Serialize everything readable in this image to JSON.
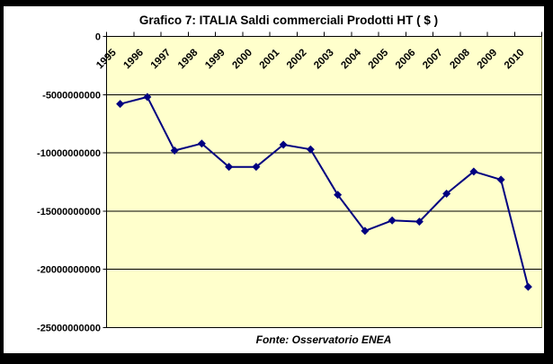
{
  "title": "Grafico 7: ITALIA Saldi commerciali Prodotti HT ( $ )",
  "chart_data": {
    "type": "line",
    "title": "Grafico 7: ITALIA Saldi commerciali Prodotti HT ( $ )",
    "source_label": "Fonte: Osservatorio ENEA",
    "categories": [
      "1995",
      "1996",
      "1997",
      "1998",
      "1999",
      "2000",
      "2001",
      "2002",
      "2003",
      "2004",
      "2005",
      "2006",
      "2007",
      "2008",
      "2009",
      "2010"
    ],
    "series": [
      {
        "name": "Saldi commerciali Prodotti HT ($)",
        "values": [
          -5800000000,
          -5200000000,
          -9800000000,
          -9200000000,
          -11200000000,
          -11200000000,
          -9300000000,
          -9700000000,
          -13600000000,
          -16700000000,
          -15800000000,
          -15900000000,
          -13500000000,
          -11600000000,
          -12300000000,
          -21500000000
        ]
      }
    ],
    "xlabel": "",
    "ylabel": "",
    "ylim": [
      -25000000000,
      0
    ],
    "ytick_values": [
      0,
      -5000000000,
      -10000000000,
      -15000000000,
      -20000000000,
      -25000000000
    ],
    "ytick_labels": [
      "0",
      "-5000000000",
      "-10000000000",
      "-15000000000",
      "-20000000000",
      "-25000000000"
    ],
    "grid": true,
    "legend": false,
    "x_axis_position": "top",
    "x_label_rotation_deg": -45,
    "marker": "diamond",
    "colors": {
      "line": "#000080",
      "marker": "#000080",
      "plot_background": "#FFFFCC",
      "plot_border": "#808040",
      "gridline": "#000000",
      "axis": "#000000",
      "text": "#000000",
      "chart_background": "#FFFFFF",
      "page_border": "#000000"
    }
  }
}
